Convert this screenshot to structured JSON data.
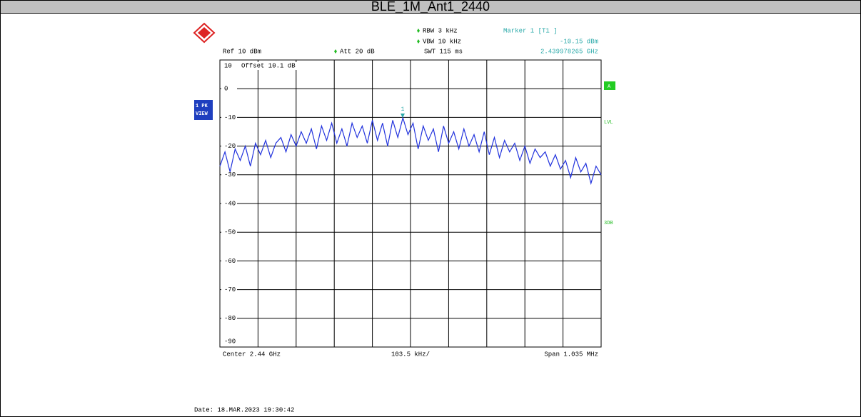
{
  "chart_data": {
    "type": "line",
    "title": "BLE_1M_Ant1_2440",
    "ref_level": "Ref 10 dBm",
    "attenuation": "Att 20 dB",
    "rbw": "RBW 3 kHz",
    "vbw": "VBW 10 kHz",
    "sweep_time": "SWT 115 ms",
    "marker": {
      "name": "Marker 1 [T1 ]",
      "label": "1",
      "value": -10.15,
      "value_label": "-10.15 dBm",
      "frequency": "2.439978265 GHz"
    },
    "offset": "Offset 10.1 dB",
    "trace_mode": [
      "1 PK",
      "VIEW"
    ],
    "side_labels": [
      "A",
      "LVL",
      "3DB"
    ],
    "center": "Center 2.44 GHz",
    "per_division": "103.5 kHz/",
    "span": "Span 1.035 MHz",
    "date": "Date: 18.MAR.2023 19:30:42",
    "color": "#2233dd",
    "ylim": [
      -90,
      10
    ],
    "yticks": [
      10,
      0,
      -10,
      -20,
      -30,
      -40,
      -50,
      -60,
      -70,
      -80,
      -90
    ],
    "values": [
      -27,
      -22,
      -29,
      -21,
      -25,
      -20,
      -27,
      -19,
      -23,
      -18,
      -24,
      -19,
      -17,
      -22,
      -16,
      -20,
      -15,
      -19,
      -14,
      -21,
      -13,
      -18,
      -12,
      -19,
      -14,
      -20,
      -12,
      -17,
      -13,
      -19,
      -11,
      -18,
      -12,
      -20,
      -11,
      -17,
      -10.15,
      -16,
      -12,
      -21,
      -13,
      -18,
      -14,
      -22,
      -13,
      -19,
      -15,
      -21,
      -14,
      -20,
      -16,
      -22,
      -15,
      -23,
      -17,
      -24,
      -18,
      -22,
      -19,
      -25,
      -20,
      -26,
      -21,
      -24,
      -22,
      -27,
      -23,
      -28,
      -25,
      -31,
      -24,
      -29,
      -26,
      -33,
      -27,
      -30
    ],
    "grid": true
  }
}
